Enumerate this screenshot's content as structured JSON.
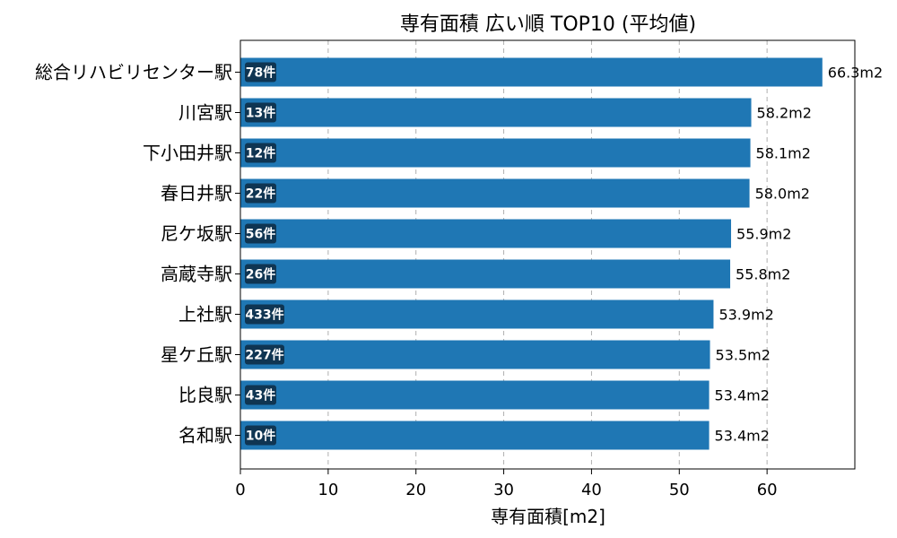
{
  "chart_data": {
    "type": "bar",
    "orientation": "horizontal",
    "title": "専有面積 広い順 TOP10 (平均値)",
    "xlabel": "専有面積[m2]",
    "ylabel": "",
    "xlim": [
      0,
      70
    ],
    "xticks": [
      0,
      10,
      20,
      30,
      40,
      50,
      60
    ],
    "grid": "x-dashed",
    "bar_color": "#1f77b4",
    "count_badge_color": "#0f3552",
    "categories": [
      "総合リハビリセンター駅",
      "川宮駅",
      "下小田井駅",
      "春日井駅",
      "尼ケ坂駅",
      "高蔵寺駅",
      "上社駅",
      "星ケ丘駅",
      "比良駅",
      "名和駅"
    ],
    "values": [
      66.3,
      58.2,
      58.1,
      58.0,
      55.9,
      55.8,
      53.9,
      53.5,
      53.4,
      53.4
    ],
    "value_labels": [
      "66.3m2",
      "58.2m2",
      "58.1m2",
      "58.0m2",
      "55.9m2",
      "55.8m2",
      "53.9m2",
      "53.5m2",
      "53.4m2",
      "53.4m2"
    ],
    "counts": [
      "78件",
      "13件",
      "12件",
      "22件",
      "56件",
      "26件",
      "433件",
      "227件",
      "43件",
      "10件"
    ]
  }
}
